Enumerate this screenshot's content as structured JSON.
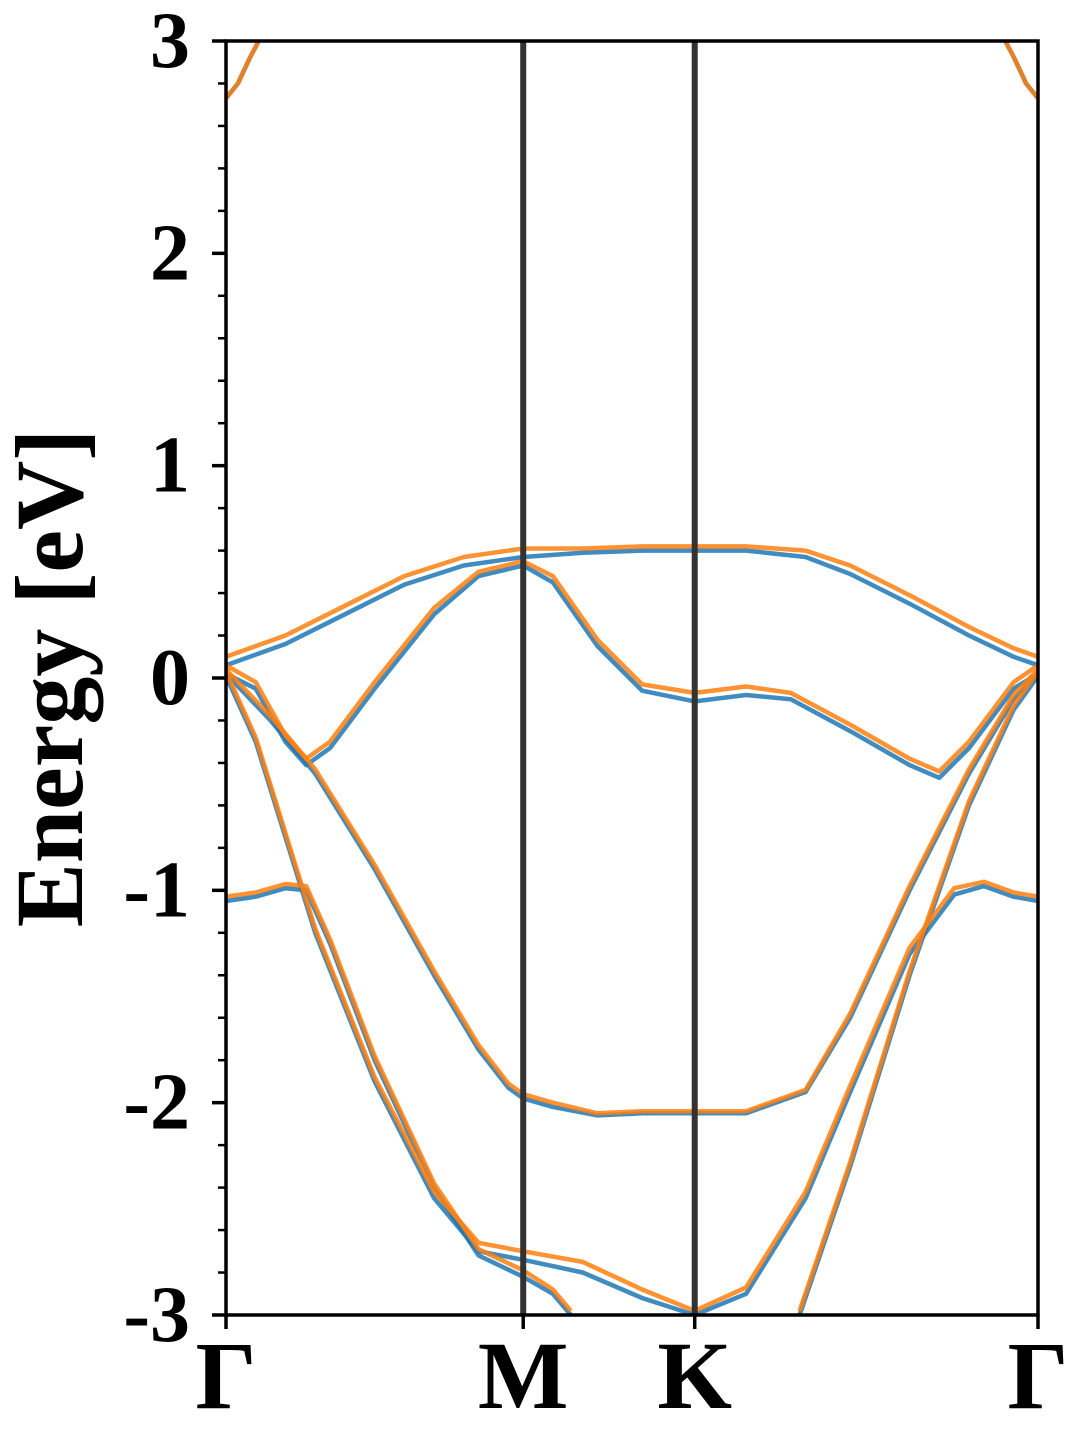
{
  "chart_data": {
    "type": "line",
    "title": "",
    "xlabel": "",
    "ylabel": "Energy [eV]",
    "ylim": [
      -3,
      3
    ],
    "xlim": [
      0,
      2.732
    ],
    "grid": false,
    "legend": "none",
    "y_ticks": [
      -3,
      -2,
      -1,
      0,
      1,
      2,
      3
    ],
    "y_tick_labels": [
      "-3",
      "-2",
      "-1",
      "0",
      "1",
      "2",
      "3"
    ],
    "y_minor_step": 0.2,
    "high_symmetry_points": [
      {
        "label": "Γ",
        "x": 0.0
      },
      {
        "label": "M",
        "x": 1.0
      },
      {
        "label": "K",
        "x": 1.577
      },
      {
        "label": "Γ",
        "x": 2.732
      }
    ],
    "colors": {
      "series_1": "#1f77b4",
      "series_2": "#ff7f0e",
      "symmetry_line": "#333333",
      "frame": "#000000"
    },
    "series": [
      {
        "color": "#1f77b4",
        "bands": [
          [
            [
              0,
              0.06
            ],
            [
              0.2,
              0.16
            ],
            [
              0.4,
              0.3
            ],
            [
              0.6,
              0.44
            ],
            [
              0.8,
              0.53
            ],
            [
              1.0,
              0.57
            ],
            [
              1.2,
              0.59
            ],
            [
              1.4,
              0.6
            ],
            [
              1.577,
              0.6
            ],
            [
              1.75,
              0.6
            ],
            [
              1.95,
              0.57
            ],
            [
              2.1,
              0.49
            ],
            [
              2.3,
              0.35
            ],
            [
              2.5,
              0.2
            ],
            [
              2.65,
              0.1
            ],
            [
              2.732,
              0.06
            ]
          ],
          [
            [
              0,
              0.02
            ],
            [
              0.1,
              -0.05
            ],
            [
              0.2,
              -0.3
            ],
            [
              0.27,
              -0.41
            ],
            [
              0.35,
              -0.33
            ],
            [
              0.5,
              -0.05
            ],
            [
              0.7,
              0.3
            ],
            [
              0.85,
              0.48
            ],
            [
              1.0,
              0.53
            ],
            [
              1.1,
              0.45
            ],
            [
              1.25,
              0.15
            ],
            [
              1.4,
              -0.06
            ],
            [
              1.577,
              -0.11
            ],
            [
              1.75,
              -0.08
            ],
            [
              1.9,
              -0.1
            ],
            [
              2.1,
              -0.25
            ],
            [
              2.3,
              -0.41
            ],
            [
              2.4,
              -0.47
            ],
            [
              2.5,
              -0.33
            ],
            [
              2.65,
              -0.05
            ],
            [
              2.732,
              0.02
            ]
          ],
          [
            [
              0,
              0.02
            ],
            [
              0.15,
              -0.2
            ],
            [
              0.3,
              -0.45
            ],
            [
              0.5,
              -0.9
            ],
            [
              0.7,
              -1.4
            ],
            [
              0.85,
              -1.75
            ],
            [
              0.95,
              -1.93
            ],
            [
              1.0,
              -1.98
            ],
            [
              1.1,
              -2.02
            ],
            [
              1.25,
              -2.06
            ],
            [
              1.4,
              -2.05
            ],
            [
              1.577,
              -2.05
            ],
            [
              1.75,
              -2.05
            ],
            [
              1.95,
              -1.95
            ],
            [
              2.1,
              -1.6
            ],
            [
              2.3,
              -1.0
            ],
            [
              2.5,
              -0.45
            ],
            [
              2.65,
              -0.1
            ],
            [
              2.732,
              0.02
            ]
          ],
          [
            [
              0,
              -1.05
            ],
            [
              0.1,
              -1.03
            ],
            [
              0.2,
              -0.99
            ],
            [
              0.27,
              -1.0
            ],
            [
              0.35,
              -1.25
            ],
            [
              0.5,
              -1.8
            ],
            [
              0.7,
              -2.4
            ],
            [
              0.85,
              -2.72
            ],
            [
              1.0,
              -2.82
            ],
            [
              1.1,
              -2.9
            ],
            [
              1.16,
              -3.0
            ]
          ],
          [
            [
              0,
              0.01
            ],
            [
              0.1,
              -0.3
            ],
            [
              0.3,
              -1.2
            ],
            [
              0.5,
              -1.9
            ],
            [
              0.7,
              -2.45
            ],
            [
              0.85,
              -2.7
            ],
            [
              1.0,
              -2.74
            ],
            [
              1.2,
              -2.8
            ],
            [
              1.4,
              -2.92
            ],
            [
              1.577,
              -3.0
            ]
          ],
          [
            [
              1.577,
              -3.0
            ],
            [
              1.75,
              -2.9
            ],
            [
              1.95,
              -2.45
            ],
            [
              2.1,
              -1.95
            ],
            [
              2.3,
              -1.3
            ],
            [
              2.45,
              -1.02
            ],
            [
              2.55,
              -0.98
            ],
            [
              2.65,
              -1.03
            ],
            [
              2.732,
              -1.05
            ]
          ],
          [
            [
              1.93,
              -3.0
            ],
            [
              2.1,
              -2.3
            ],
            [
              2.3,
              -1.4
            ],
            [
              2.5,
              -0.6
            ],
            [
              2.65,
              -0.15
            ],
            [
              2.732,
              0.01
            ]
          ],
          [
            [
              0,
              2.73
            ],
            [
              0.04,
              2.8
            ],
            [
              0.08,
              2.92
            ],
            [
              0.11,
              3.0
            ]
          ],
          [
            [
              2.622,
              3.0
            ],
            [
              2.652,
              2.92
            ],
            [
              2.692,
              2.8
            ],
            [
              2.732,
              2.73
            ]
          ]
        ]
      },
      {
        "color": "#ff7f0e",
        "bands": [
          [
            [
              0,
              0.1
            ],
            [
              0.2,
              0.2
            ],
            [
              0.4,
              0.34
            ],
            [
              0.6,
              0.48
            ],
            [
              0.8,
              0.57
            ],
            [
              1.0,
              0.61
            ],
            [
              1.2,
              0.61
            ],
            [
              1.4,
              0.62
            ],
            [
              1.577,
              0.62
            ],
            [
              1.75,
              0.62
            ],
            [
              1.95,
              0.6
            ],
            [
              2.1,
              0.53
            ],
            [
              2.3,
              0.39
            ],
            [
              2.5,
              0.24
            ],
            [
              2.65,
              0.14
            ],
            [
              2.732,
              0.1
            ]
          ],
          [
            [
              0,
              0.06
            ],
            [
              0.1,
              -0.02
            ],
            [
              0.2,
              -0.27
            ],
            [
              0.27,
              -0.38
            ],
            [
              0.35,
              -0.3
            ],
            [
              0.5,
              -0.02
            ],
            [
              0.7,
              0.33
            ],
            [
              0.85,
              0.5
            ],
            [
              1.0,
              0.55
            ],
            [
              1.1,
              0.48
            ],
            [
              1.25,
              0.18
            ],
            [
              1.4,
              -0.03
            ],
            [
              1.577,
              -0.07
            ],
            [
              1.75,
              -0.04
            ],
            [
              1.9,
              -0.07
            ],
            [
              2.1,
              -0.22
            ],
            [
              2.3,
              -0.38
            ],
            [
              2.4,
              -0.44
            ],
            [
              2.5,
              -0.3
            ],
            [
              2.65,
              -0.02
            ],
            [
              2.732,
              0.06
            ]
          ],
          [
            [
              0,
              0.04
            ],
            [
              0.15,
              -0.18
            ],
            [
              0.3,
              -0.43
            ],
            [
              0.5,
              -0.88
            ],
            [
              0.7,
              -1.38
            ],
            [
              0.85,
              -1.73
            ],
            [
              0.95,
              -1.91
            ],
            [
              1.0,
              -1.96
            ],
            [
              1.1,
              -2.0
            ],
            [
              1.25,
              -2.05
            ],
            [
              1.4,
              -2.04
            ],
            [
              1.577,
              -2.04
            ],
            [
              1.75,
              -2.04
            ],
            [
              1.95,
              -1.94
            ],
            [
              2.1,
              -1.58
            ],
            [
              2.3,
              -0.98
            ],
            [
              2.5,
              -0.43
            ],
            [
              2.65,
              -0.08
            ],
            [
              2.732,
              0.04
            ]
          ],
          [
            [
              0,
              -1.03
            ],
            [
              0.1,
              -1.01
            ],
            [
              0.2,
              -0.97
            ],
            [
              0.27,
              -0.98
            ],
            [
              0.35,
              -1.23
            ],
            [
              0.5,
              -1.78
            ],
            [
              0.7,
              -2.38
            ],
            [
              0.85,
              -2.69
            ],
            [
              1.0,
              -2.79
            ],
            [
              1.1,
              -2.88
            ],
            [
              1.16,
              -2.98
            ]
          ],
          [
            [
              0,
              0.03
            ],
            [
              0.1,
              -0.28
            ],
            [
              0.3,
              -1.18
            ],
            [
              0.5,
              -1.88
            ],
            [
              0.7,
              -2.42
            ],
            [
              0.85,
              -2.66
            ],
            [
              1.0,
              -2.7
            ],
            [
              1.2,
              -2.75
            ],
            [
              1.4,
              -2.88
            ],
            [
              1.577,
              -2.98
            ]
          ],
          [
            [
              1.577,
              -2.98
            ],
            [
              1.75,
              -2.87
            ],
            [
              1.95,
              -2.42
            ],
            [
              2.1,
              -1.92
            ],
            [
              2.3,
              -1.27
            ],
            [
              2.45,
              -0.99
            ],
            [
              2.55,
              -0.96
            ],
            [
              2.65,
              -1.01
            ],
            [
              2.732,
              -1.03
            ]
          ],
          [
            [
              1.93,
              -2.98
            ],
            [
              2.1,
              -2.28
            ],
            [
              2.3,
              -1.38
            ],
            [
              2.5,
              -0.58
            ],
            [
              2.65,
              -0.13
            ],
            [
              2.732,
              0.03
            ]
          ],
          [
            [
              0,
              2.73
            ],
            [
              0.04,
              2.8
            ],
            [
              0.08,
              2.92
            ],
            [
              0.11,
              3.0
            ]
          ],
          [
            [
              2.622,
              3.0
            ],
            [
              2.652,
              2.92
            ],
            [
              2.692,
              2.8
            ],
            [
              2.732,
              2.73
            ]
          ]
        ]
      }
    ]
  }
}
